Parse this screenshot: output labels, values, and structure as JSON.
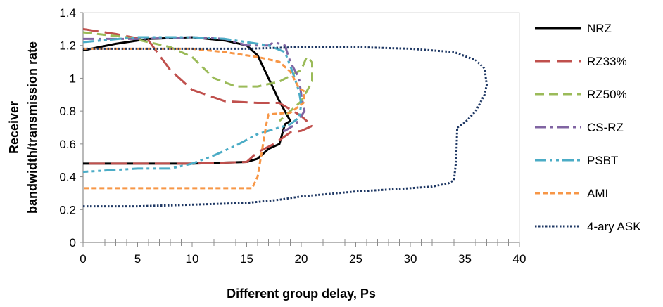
{
  "chart_data": {
    "type": "line",
    "title": "",
    "xlabel": "Different group delay, Ps",
    "ylabel_lines": [
      "Receiver",
      "bandwidth/transmission rate"
    ],
    "xlim": [
      0,
      40
    ],
    "ylim": [
      0,
      1.4
    ],
    "x_ticks": [
      0,
      5,
      10,
      15,
      20,
      25,
      30,
      35,
      40
    ],
    "x_tick_labels": [
      "0",
      "5",
      "10",
      "15",
      "20",
      "25",
      "30",
      "35",
      "40"
    ],
    "y_ticks": [
      0,
      0.2,
      0.4,
      0.6,
      0.8,
      1,
      1.2,
      1.4
    ],
    "y_tick_labels": [
      "0",
      "0.2",
      "0.4",
      "0.6",
      "0.8",
      "1",
      "1.2",
      "1.4"
    ],
    "grid": false,
    "legend_position": "right",
    "series": [
      {
        "name": "NRZ",
        "color": "#000000",
        "dash": "solid",
        "width": 3,
        "points": [
          [
            0,
            1.17
          ],
          [
            3,
            1.21
          ],
          [
            6,
            1.24
          ],
          [
            10,
            1.25
          ],
          [
            13,
            1.23
          ],
          [
            15,
            1.2
          ],
          [
            16,
            1.14
          ],
          [
            17,
            1.0
          ],
          [
            18,
            0.86
          ],
          [
            19,
            0.74
          ],
          [
            18.5,
            0.72
          ],
          [
            18,
            0.6
          ],
          [
            17,
            0.57
          ],
          [
            16,
            0.51
          ],
          [
            15,
            0.49
          ],
          [
            10,
            0.48
          ],
          [
            5,
            0.48
          ],
          [
            0,
            0.48
          ]
        ]
      },
      {
        "name": "RZ33%",
        "color": "#c0504d",
        "dash": "longdash",
        "width": 3,
        "points": [
          [
            0,
            1.3
          ],
          [
            3,
            1.27
          ],
          [
            6,
            1.23
          ],
          [
            8,
            1.05
          ],
          [
            10,
            0.93
          ],
          [
            13,
            0.86
          ],
          [
            16,
            0.85
          ],
          [
            18,
            0.85
          ],
          [
            20,
            0.77
          ],
          [
            21,
            0.71
          ],
          [
            20,
            0.68
          ],
          [
            19,
            0.67
          ],
          [
            17.5,
            0.6
          ],
          [
            16,
            0.55
          ],
          [
            15,
            0.49
          ],
          [
            10,
            0.48
          ],
          [
            5,
            0.48
          ],
          [
            0,
            0.48
          ]
        ]
      },
      {
        "name": "RZ50%",
        "color": "#9bbb59",
        "dash": "dash",
        "width": 3,
        "points": [
          [
            0,
            1.28
          ],
          [
            4,
            1.25
          ],
          [
            8,
            1.19
          ],
          [
            10,
            1.13
          ],
          [
            12,
            1.0
          ],
          [
            14,
            0.95
          ],
          [
            16,
            0.95
          ],
          [
            18,
            0.98
          ],
          [
            20,
            1.05
          ],
          [
            20.5,
            1.13
          ],
          [
            21,
            1.1
          ],
          [
            21,
            0.98
          ],
          [
            20,
            0.86
          ],
          [
            19,
            0.8
          ],
          [
            18,
            0.74
          ]
        ]
      },
      {
        "name": "CS-RZ",
        "color": "#8064a2",
        "dash": "dashdot",
        "width": 3,
        "points": [
          [
            0,
            1.24
          ],
          [
            5,
            1.24
          ],
          [
            10,
            1.25
          ],
          [
            13,
            1.24
          ],
          [
            15,
            1.2
          ],
          [
            17,
            1.2
          ],
          [
            17.5,
            1.22
          ],
          [
            18.5,
            1.2
          ],
          [
            19,
            1.1
          ],
          [
            19.8,
            1.0
          ],
          [
            20,
            0.9
          ],
          [
            20.3,
            0.8
          ],
          [
            19.5,
            0.72
          ],
          [
            18.5,
            0.68
          ],
          [
            18,
            0.68
          ]
        ]
      },
      {
        "name": "PSBT",
        "color": "#4bacc6",
        "dash": "dashdotdot",
        "width": 3,
        "points": [
          [
            0,
            1.22
          ],
          [
            5,
            1.25
          ],
          [
            10,
            1.25
          ],
          [
            13,
            1.24
          ],
          [
            15,
            1.22
          ],
          [
            17,
            1.2
          ],
          [
            18.5,
            1.16
          ],
          [
            19.2,
            1.04
          ],
          [
            19.8,
            0.92
          ],
          [
            20,
            0.84
          ],
          [
            19.8,
            0.76
          ],
          [
            19,
            0.72
          ],
          [
            18,
            0.7
          ],
          [
            16,
            0.66
          ],
          [
            14,
            0.59
          ],
          [
            12,
            0.53
          ],
          [
            10,
            0.48
          ],
          [
            8,
            0.45
          ],
          [
            5,
            0.45
          ],
          [
            0,
            0.43
          ]
        ]
      },
      {
        "name": "AMI",
        "color": "#f79646",
        "dash": "shortdash",
        "width": 3,
        "points": [
          [
            0,
            1.18
          ],
          [
            5,
            1.18
          ],
          [
            10,
            1.18
          ],
          [
            13,
            1.16
          ],
          [
            16,
            1.13
          ],
          [
            18,
            1.1
          ],
          [
            19,
            1.04
          ],
          [
            19.8,
            0.94
          ],
          [
            20.3,
            0.92
          ],
          [
            20.2,
            0.85
          ],
          [
            19,
            0.79
          ],
          [
            17,
            0.78
          ],
          [
            16.8,
            0.72
          ],
          [
            16.5,
            0.6
          ],
          [
            16,
            0.4
          ],
          [
            15.5,
            0.33
          ],
          [
            10,
            0.33
          ],
          [
            5,
            0.33
          ],
          [
            0,
            0.33
          ]
        ]
      },
      {
        "name": "4-ary ASK",
        "color": "#1f3864",
        "dash": "dot",
        "width": 3,
        "points": [
          [
            0,
            0.22
          ],
          [
            5,
            0.22
          ],
          [
            10,
            0.23
          ],
          [
            15,
            0.24
          ],
          [
            18,
            0.26
          ],
          [
            20,
            0.28
          ],
          [
            25,
            0.31
          ],
          [
            30,
            0.33
          ],
          [
            32,
            0.34
          ],
          [
            33.5,
            0.36
          ],
          [
            34,
            0.38
          ],
          [
            34.2,
            0.5
          ],
          [
            34.3,
            0.7
          ],
          [
            35,
            0.73
          ],
          [
            36,
            0.8
          ],
          [
            36.8,
            0.9
          ],
          [
            37,
            0.96
          ],
          [
            36.8,
            1.06
          ],
          [
            36,
            1.11
          ],
          [
            34,
            1.16
          ],
          [
            30,
            1.18
          ],
          [
            25,
            1.19
          ],
          [
            20,
            1.19
          ],
          [
            15,
            1.18
          ],
          [
            10,
            1.18
          ],
          [
            5,
            1.18
          ],
          [
            0,
            1.18
          ]
        ]
      }
    ]
  }
}
